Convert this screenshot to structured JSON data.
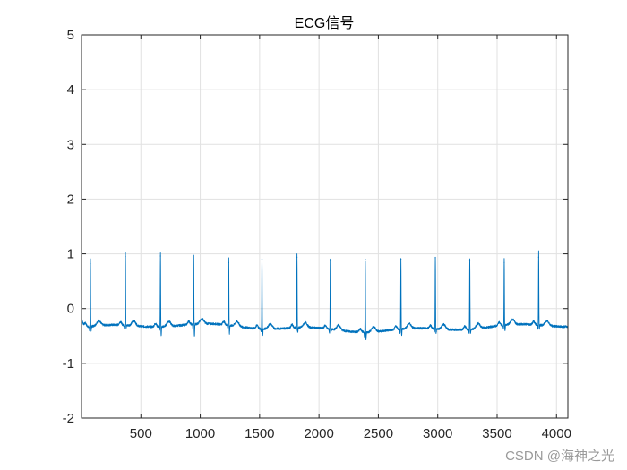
{
  "chart_data": {
    "type": "line",
    "title": "ECG信号",
    "xlabel": "",
    "ylabel": "",
    "xlim": [
      0,
      4096
    ],
    "ylim": [
      -2,
      5
    ],
    "grid": true,
    "x_ticks": [
      500,
      1000,
      1500,
      2000,
      2500,
      3000,
      3500,
      4000
    ],
    "x_tick_labels": [
      "500",
      "1000",
      "1500",
      "2000",
      "2500",
      "3000",
      "3500",
      "4000"
    ],
    "y_ticks": [
      -2,
      -1,
      0,
      1,
      2,
      3,
      4,
      5
    ],
    "y_tick_labels": [
      "-2",
      "-1",
      "0",
      "1",
      "2",
      "3",
      "4",
      "5"
    ],
    "series": [
      {
        "color": "#0072bd",
        "baseline": -0.35,
        "r_peaks": [
          {
            "x": 75,
            "y": 0.82,
            "s": -0.47
          },
          {
            "x": 370,
            "y": 0.95,
            "s": -0.45
          },
          {
            "x": 665,
            "y": 0.96,
            "s": -0.55
          },
          {
            "x": 945,
            "y": 0.87,
            "s": -0.63
          },
          {
            "x": 1240,
            "y": 0.84,
            "s": -0.55
          },
          {
            "x": 1520,
            "y": 0.9,
            "s": -0.52
          },
          {
            "x": 1815,
            "y": 0.94,
            "s": -0.5
          },
          {
            "x": 2095,
            "y": 0.88,
            "s": -0.45
          },
          {
            "x": 2390,
            "y": 0.9,
            "s": -0.55
          },
          {
            "x": 2690,
            "y": 0.9,
            "s": -0.52
          },
          {
            "x": 2980,
            "y": 0.93,
            "s": -0.5
          },
          {
            "x": 3270,
            "y": 0.88,
            "s": -0.48
          },
          {
            "x": 3560,
            "y": 0.84,
            "s": -0.52
          },
          {
            "x": 3850,
            "y": 0.94,
            "s": -0.47
          }
        ]
      }
    ]
  },
  "watermark": "CSDN @海神之光",
  "colors": {
    "line": "#0072bd",
    "grid": "#e1e1e1",
    "axis": "#262626"
  }
}
